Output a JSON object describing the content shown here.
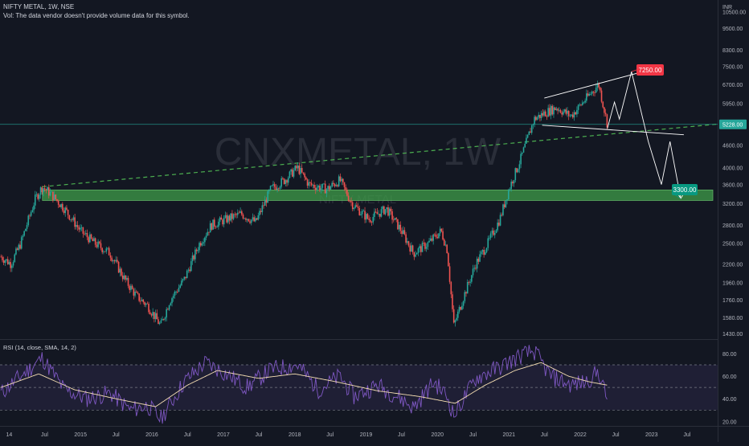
{
  "header": {
    "symbol_line": "NIFTY METAL, 1W, NSE",
    "volume_note": "Vol: The data vendor doesn't provide volume data for this symbol."
  },
  "watermark": {
    "main": "CNXMETAL, 1W",
    "sub": "NIFTY METAL"
  },
  "colors": {
    "background": "#131722",
    "up_candle": "#26a69a",
    "down_candle": "#ef5350",
    "zone_fill": "#3f9e4a",
    "trendline": "#4caf50",
    "price_line": "#26a69a",
    "drawing": "#ffffff",
    "rsi_line": "#7e57c2",
    "rsi_ma": "#f5deb3",
    "rsi_band": "#7e57c2",
    "target_up_label": "#f23645",
    "target_down_label": "#089981"
  },
  "chart_data": [
    {
      "type": "candlestick",
      "title": "NIFTY METAL, 1W, NSE",
      "y_unit": "INR",
      "scale": "log",
      "ylim": [
        1380,
        11300
      ],
      "y_ticks": [
        10500,
        9500,
        8300,
        7500,
        6700,
        5950,
        4600,
        4000,
        3600,
        3200,
        2800,
        2500,
        2200,
        1960,
        1760,
        1580,
        1430
      ],
      "x_ticks": [
        "14",
        "Jul",
        "2015",
        "Jul",
        "2016",
        "Jul",
        "2017",
        "Jul",
        "2018",
        "Jul",
        "2019",
        "Jul",
        "2020",
        "Jul",
        "2021",
        "Jul",
        "2022",
        "Jul",
        "2023",
        "Jul"
      ],
      "x_tick_dates": [
        "2014-01-01",
        "2014-07-01",
        "2015-01-01",
        "2015-07-01",
        "2016-01-01",
        "2016-07-01",
        "2017-01-01",
        "2017-07-01",
        "2018-01-01",
        "2018-07-01",
        "2019-01-01",
        "2019-07-01",
        "2020-01-01",
        "2020-07-01",
        "2021-01-01",
        "2021-07-01",
        "2022-01-01",
        "2022-07-01",
        "2023-01-01",
        "2023-07-01"
      ],
      "x_range": [
        "2013-11-15",
        "2023-12-05"
      ],
      "current_price": 5228.0,
      "current_price_label": "5228.00",
      "price_path": [
        [
          "2013-11-20",
          2300
        ],
        [
          "2014-01-10",
          2200
        ],
        [
          "2014-03-01",
          2500
        ],
        [
          "2014-05-15",
          3300
        ],
        [
          "2014-06-20",
          3550
        ],
        [
          "2014-08-01",
          3400
        ],
        [
          "2014-10-10",
          3100
        ],
        [
          "2015-01-01",
          2700
        ],
        [
          "2015-03-15",
          2500
        ],
        [
          "2015-06-01",
          2350
        ],
        [
          "2015-08-15",
          2000
        ],
        [
          "2015-10-15",
          1800
        ],
        [
          "2015-12-10",
          1700
        ],
        [
          "2016-02-15",
          1500
        ],
        [
          "2016-04-01",
          1750
        ],
        [
          "2016-06-15",
          2000
        ],
        [
          "2016-09-01",
          2500
        ],
        [
          "2016-11-01",
          2800
        ],
        [
          "2017-01-15",
          2900
        ],
        [
          "2017-04-01",
          3000
        ],
        [
          "2017-06-15",
          2850
        ],
        [
          "2017-09-01",
          3500
        ],
        [
          "2017-11-10",
          3700
        ],
        [
          "2018-01-15",
          4000
        ],
        [
          "2018-03-15",
          3600
        ],
        [
          "2018-06-15",
          3500
        ],
        [
          "2018-08-20",
          3700
        ],
        [
          "2018-10-20",
          3200
        ],
        [
          "2019-01-15",
          2900
        ],
        [
          "2019-04-15",
          3100
        ],
        [
          "2019-07-01",
          2700
        ],
        [
          "2019-09-01",
          2350
        ],
        [
          "2019-11-15",
          2500
        ],
        [
          "2020-01-20",
          2700
        ],
        [
          "2020-02-20",
          2400
        ],
        [
          "2020-03-25",
          1500
        ],
        [
          "2020-05-15",
          1800
        ],
        [
          "2020-07-15",
          2200
        ],
        [
          "2020-09-15",
          2500
        ],
        [
          "2020-11-15",
          2900
        ],
        [
          "2021-01-01",
          3500
        ],
        [
          "2021-03-01",
          4200
        ],
        [
          "2021-05-10",
          5400
        ],
        [
          "2021-07-01",
          5600
        ],
        [
          "2021-09-01",
          5800
        ],
        [
          "2021-11-15",
          5500
        ],
        [
          "2022-01-15",
          6000
        ],
        [
          "2022-04-05",
          6700
        ],
        [
          "2022-05-01",
          5800
        ],
        [
          "2022-05-20",
          5228
        ]
      ]
    },
    {
      "type": "line",
      "title": "RSI (14, close, SMA, 14, 2)",
      "ylim": [
        16,
        92
      ],
      "y_ticks": [
        80.0,
        60.0,
        40.0,
        20.0
      ],
      "bands": {
        "upper": 70,
        "middle": 50,
        "lower": 30
      },
      "rsi_path": [
        [
          "2013-11-20",
          45
        ],
        [
          "2014-03-01",
          60
        ],
        [
          "2014-06-20",
          76
        ],
        [
          "2014-10-10",
          48
        ],
        [
          "2015-02-01",
          40
        ],
        [
          "2015-06-01",
          45
        ],
        [
          "2015-09-15",
          30
        ],
        [
          "2015-12-10",
          34
        ],
        [
          "2016-02-15",
          22
        ],
        [
          "2016-06-15",
          55
        ],
        [
          "2016-10-01",
          72
        ],
        [
          "2017-01-15",
          62
        ],
        [
          "2017-05-01",
          50
        ],
        [
          "2017-09-01",
          66
        ],
        [
          "2018-01-15",
          70
        ],
        [
          "2018-05-01",
          48
        ],
        [
          "2018-08-20",
          60
        ],
        [
          "2018-11-01",
          42
        ],
        [
          "2019-03-01",
          52
        ],
        [
          "2019-07-01",
          40
        ],
        [
          "2019-09-01",
          32
        ],
        [
          "2019-12-15",
          55
        ],
        [
          "2020-02-20",
          42
        ],
        [
          "2020-03-25",
          25
        ],
        [
          "2020-07-15",
          58
        ],
        [
          "2020-11-15",
          68
        ],
        [
          "2021-03-01",
          78
        ],
        [
          "2021-05-10",
          82
        ],
        [
          "2021-08-01",
          60
        ],
        [
          "2021-11-15",
          52
        ],
        [
          "2022-02-01",
          55
        ],
        [
          "2022-04-05",
          64
        ],
        [
          "2022-05-20",
          38
        ]
      ],
      "rsi_ma_path": [
        [
          "2013-11-20",
          50
        ],
        [
          "2014-06-01",
          62
        ],
        [
          "2014-12-01",
          48
        ],
        [
          "2015-07-01",
          40
        ],
        [
          "2016-01-20",
          33
        ],
        [
          "2016-07-01",
          52
        ],
        [
          "2016-12-01",
          65
        ],
        [
          "2017-07-01",
          58
        ],
        [
          "2018-01-01",
          62
        ],
        [
          "2018-08-01",
          55
        ],
        [
          "2019-03-01",
          47
        ],
        [
          "2019-10-01",
          42
        ],
        [
          "2020-04-01",
          36
        ],
        [
          "2020-09-01",
          52
        ],
        [
          "2021-02-01",
          65
        ],
        [
          "2021-06-15",
          72
        ],
        [
          "2021-11-01",
          60
        ],
        [
          "2022-02-15",
          55
        ],
        [
          "2022-05-20",
          52
        ]
      ]
    }
  ],
  "annotations": {
    "upper_target_label": "7250.00",
    "lower_target_label": "3300.00",
    "upper_target_value": 7250,
    "lower_target_value": 3300,
    "zone_top": 3480,
    "zone_bottom": 3260
  }
}
